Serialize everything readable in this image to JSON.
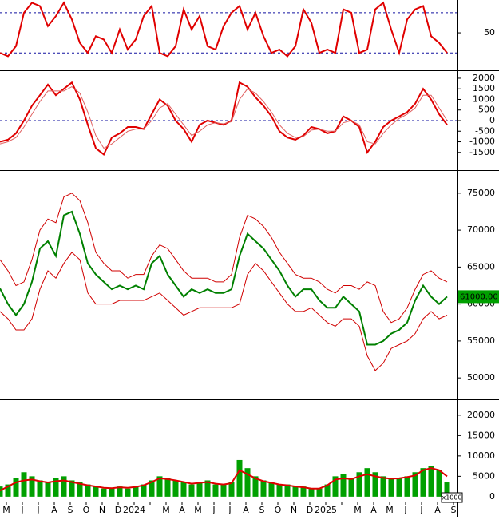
{
  "chart_data": [
    {
      "type": "line",
      "ylim": [
        -6,
        99
      ],
      "yticks": [
        50
      ],
      "levels": [
        80,
        20
      ],
      "series": [
        {
          "name": null,
          "color": "#e00000",
          "values": [
            20,
            15,
            30,
            80,
            95,
            90,
            60,
            75,
            95,
            70,
            35,
            20,
            45,
            40,
            20,
            55,
            25,
            40,
            75,
            90,
            20,
            15,
            30,
            85,
            55,
            75,
            30,
            25,
            60,
            80,
            90,
            55,
            80,
            45,
            20,
            25,
            15,
            30,
            85,
            65,
            20,
            25,
            20,
            85,
            80,
            20,
            25,
            85,
            95,
            55,
            20,
            70,
            85,
            90,
            45,
            35,
            20
          ]
        }
      ]
    },
    {
      "type": "line",
      "ylim": [
        -2300,
        2300
      ],
      "yticks": [
        2000,
        1500,
        1000,
        500,
        0,
        -500,
        -1000,
        -1500
      ],
      "levels": [
        0
      ],
      "series": [
        {
          "name": null,
          "color": "#e00000",
          "values": [
            -1000,
            -900,
            -600,
            0,
            700,
            1200,
            1700,
            1200,
            1500,
            1800,
            1000,
            -200,
            -1300,
            -1600,
            -800,
            -600,
            -300,
            -300,
            -400,
            300,
            1000,
            700,
            0,
            -400,
            -1000,
            -200,
            0,
            -100,
            -200,
            0,
            1800,
            1600,
            1100,
            700,
            200,
            -500,
            -800,
            -900,
            -700,
            -300,
            -400,
            -600,
            -500,
            200,
            0,
            -300,
            -1500,
            -1000,
            -300,
            0,
            200,
            400,
            800,
            1500,
            1000,
            300,
            -200
          ]
        },
        {
          "name": null,
          "color": "#e06060",
          "values": [
            -1100,
            -1000,
            -800,
            -300,
            300,
            900,
            1400,
            1400,
            1400,
            1600,
            1300,
            400,
            -700,
            -1300,
            -1100,
            -800,
            -500,
            -400,
            -400,
            0,
            600,
            800,
            300,
            -200,
            -700,
            -500,
            -200,
            -100,
            -150,
            -50,
            1000,
            1500,
            1300,
            900,
            400,
            -200,
            -600,
            -800,
            -750,
            -450,
            -400,
            -500,
            -500,
            -100,
            0,
            -200,
            -1000,
            -1100,
            -600,
            -200,
            100,
            300,
            600,
            1200,
            1200,
            600,
            0
          ]
        }
      ]
    },
    {
      "type": "price",
      "ylim": [
        47100,
        77900
      ],
      "yticks": [
        75000,
        70000,
        65000,
        60000,
        55000,
        50000
      ],
      "last_price": {
        "value": 61000,
        "label": "61000.00"
      },
      "series": [
        {
          "name": null,
          "color": "#008000",
          "values": [
            62100,
            60000,
            58500,
            60000,
            63000,
            67500,
            68500,
            66500,
            72000,
            72500,
            69500,
            65500,
            64000,
            63000,
            62000,
            62500,
            62000,
            62500,
            62000,
            65500,
            66500,
            64000,
            62500,
            61000,
            62000,
            61500,
            62000,
            61500,
            61500,
            62000,
            66500,
            69500,
            68500,
            67500,
            66000,
            64500,
            62500,
            61000,
            62000,
            62000,
            60500,
            59500,
            59500,
            61000,
            60000,
            59000,
            54500,
            54500,
            55000,
            56000,
            56500,
            57500,
            60500,
            62500,
            61000,
            60000,
            61000
          ]
        },
        {
          "name": null,
          "color": "#d00000",
          "values": [
            66000,
            64500,
            62500,
            63000,
            66000,
            70000,
            71500,
            71000,
            74500,
            75000,
            74000,
            71000,
            67000,
            65500,
            64500,
            64500,
            63500,
            64000,
            64000,
            66500,
            68000,
            67500,
            66000,
            64500,
            63500,
            63500,
            63500,
            63000,
            63000,
            64000,
            69000,
            72000,
            71500,
            70500,
            69000,
            67000,
            65500,
            64000,
            63500,
            63500,
            63000,
            62000,
            61500,
            62500,
            62500,
            62000,
            63000,
            62500,
            59000,
            57500,
            58000,
            59500,
            62000,
            64000,
            64500,
            63500,
            63000
          ]
        },
        {
          "name": null,
          "color": "#d00000",
          "values": [
            59000,
            58000,
            56500,
            56500,
            58000,
            62000,
            64500,
            63500,
            65500,
            67000,
            66000,
            61500,
            60000,
            60000,
            60000,
            60500,
            60500,
            60500,
            60500,
            61000,
            61500,
            60500,
            59500,
            58500,
            59000,
            59500,
            59500,
            59500,
            59500,
            59500,
            60000,
            64000,
            65500,
            64500,
            63000,
            61500,
            60000,
            59000,
            59000,
            59500,
            58500,
            57500,
            57000,
            58000,
            58000,
            57000,
            53000,
            51000,
            52000,
            54000,
            54500,
            55000,
            56000,
            58000,
            59000,
            58000,
            58500
          ]
        }
      ]
    },
    {
      "type": "volume",
      "ylim": [
        -1200,
        23300
      ],
      "yticks": [
        20000,
        15000,
        10000,
        5000,
        0
      ],
      "unit_label": "x1000",
      "month_labels": [
        "M",
        "J",
        "J",
        "A",
        "S",
        "O",
        "N",
        "D",
        "2024",
        null,
        "M",
        "A",
        "M",
        "J",
        "J",
        "A",
        "S",
        "O",
        "N",
        "D",
        "2025",
        null,
        "M",
        "A",
        "M",
        "J",
        "J",
        "A",
        "S"
      ],
      "series": [
        {
          "name": null,
          "color": "#00a000",
          "values": [
            2500,
            3000,
            4500,
            6000,
            5000,
            4000,
            3500,
            4500,
            5000,
            4000,
            3500,
            3000,
            2500,
            2000,
            2000,
            2500,
            2000,
            2500,
            3000,
            4000,
            5000,
            4500,
            4000,
            3500,
            3000,
            3500,
            4000,
            3000,
            3000,
            3500,
            9000,
            7000,
            5000,
            4000,
            3500,
            3000,
            3000,
            2500,
            2500,
            2000,
            2000,
            3000,
            5000,
            5500,
            4500,
            6000,
            7000,
            6000,
            5000,
            4500,
            4500,
            5000,
            6000,
            7000,
            7500,
            6500,
            3500
          ]
        },
        {
          "name": null,
          "color": "#e00000",
          "values": [
            1500,
            2500,
            3500,
            4000,
            4200,
            3800,
            3500,
            3800,
            4000,
            3600,
            3200,
            2800,
            2500,
            2200,
            2100,
            2300,
            2200,
            2400,
            2800,
            3600,
            4500,
            4300,
            4000,
            3600,
            3200,
            3400,
            3600,
            3200,
            3000,
            3300,
            6500,
            5500,
            4500,
            3800,
            3400,
            3000,
            2800,
            2500,
            2300,
            2000,
            2000,
            2800,
            4200,
            4500,
            4300,
            5000,
            5500,
            5000,
            4600,
            4400,
            4500,
            4800,
            5200,
            6500,
            7000,
            6500,
            5000
          ]
        }
      ]
    }
  ]
}
